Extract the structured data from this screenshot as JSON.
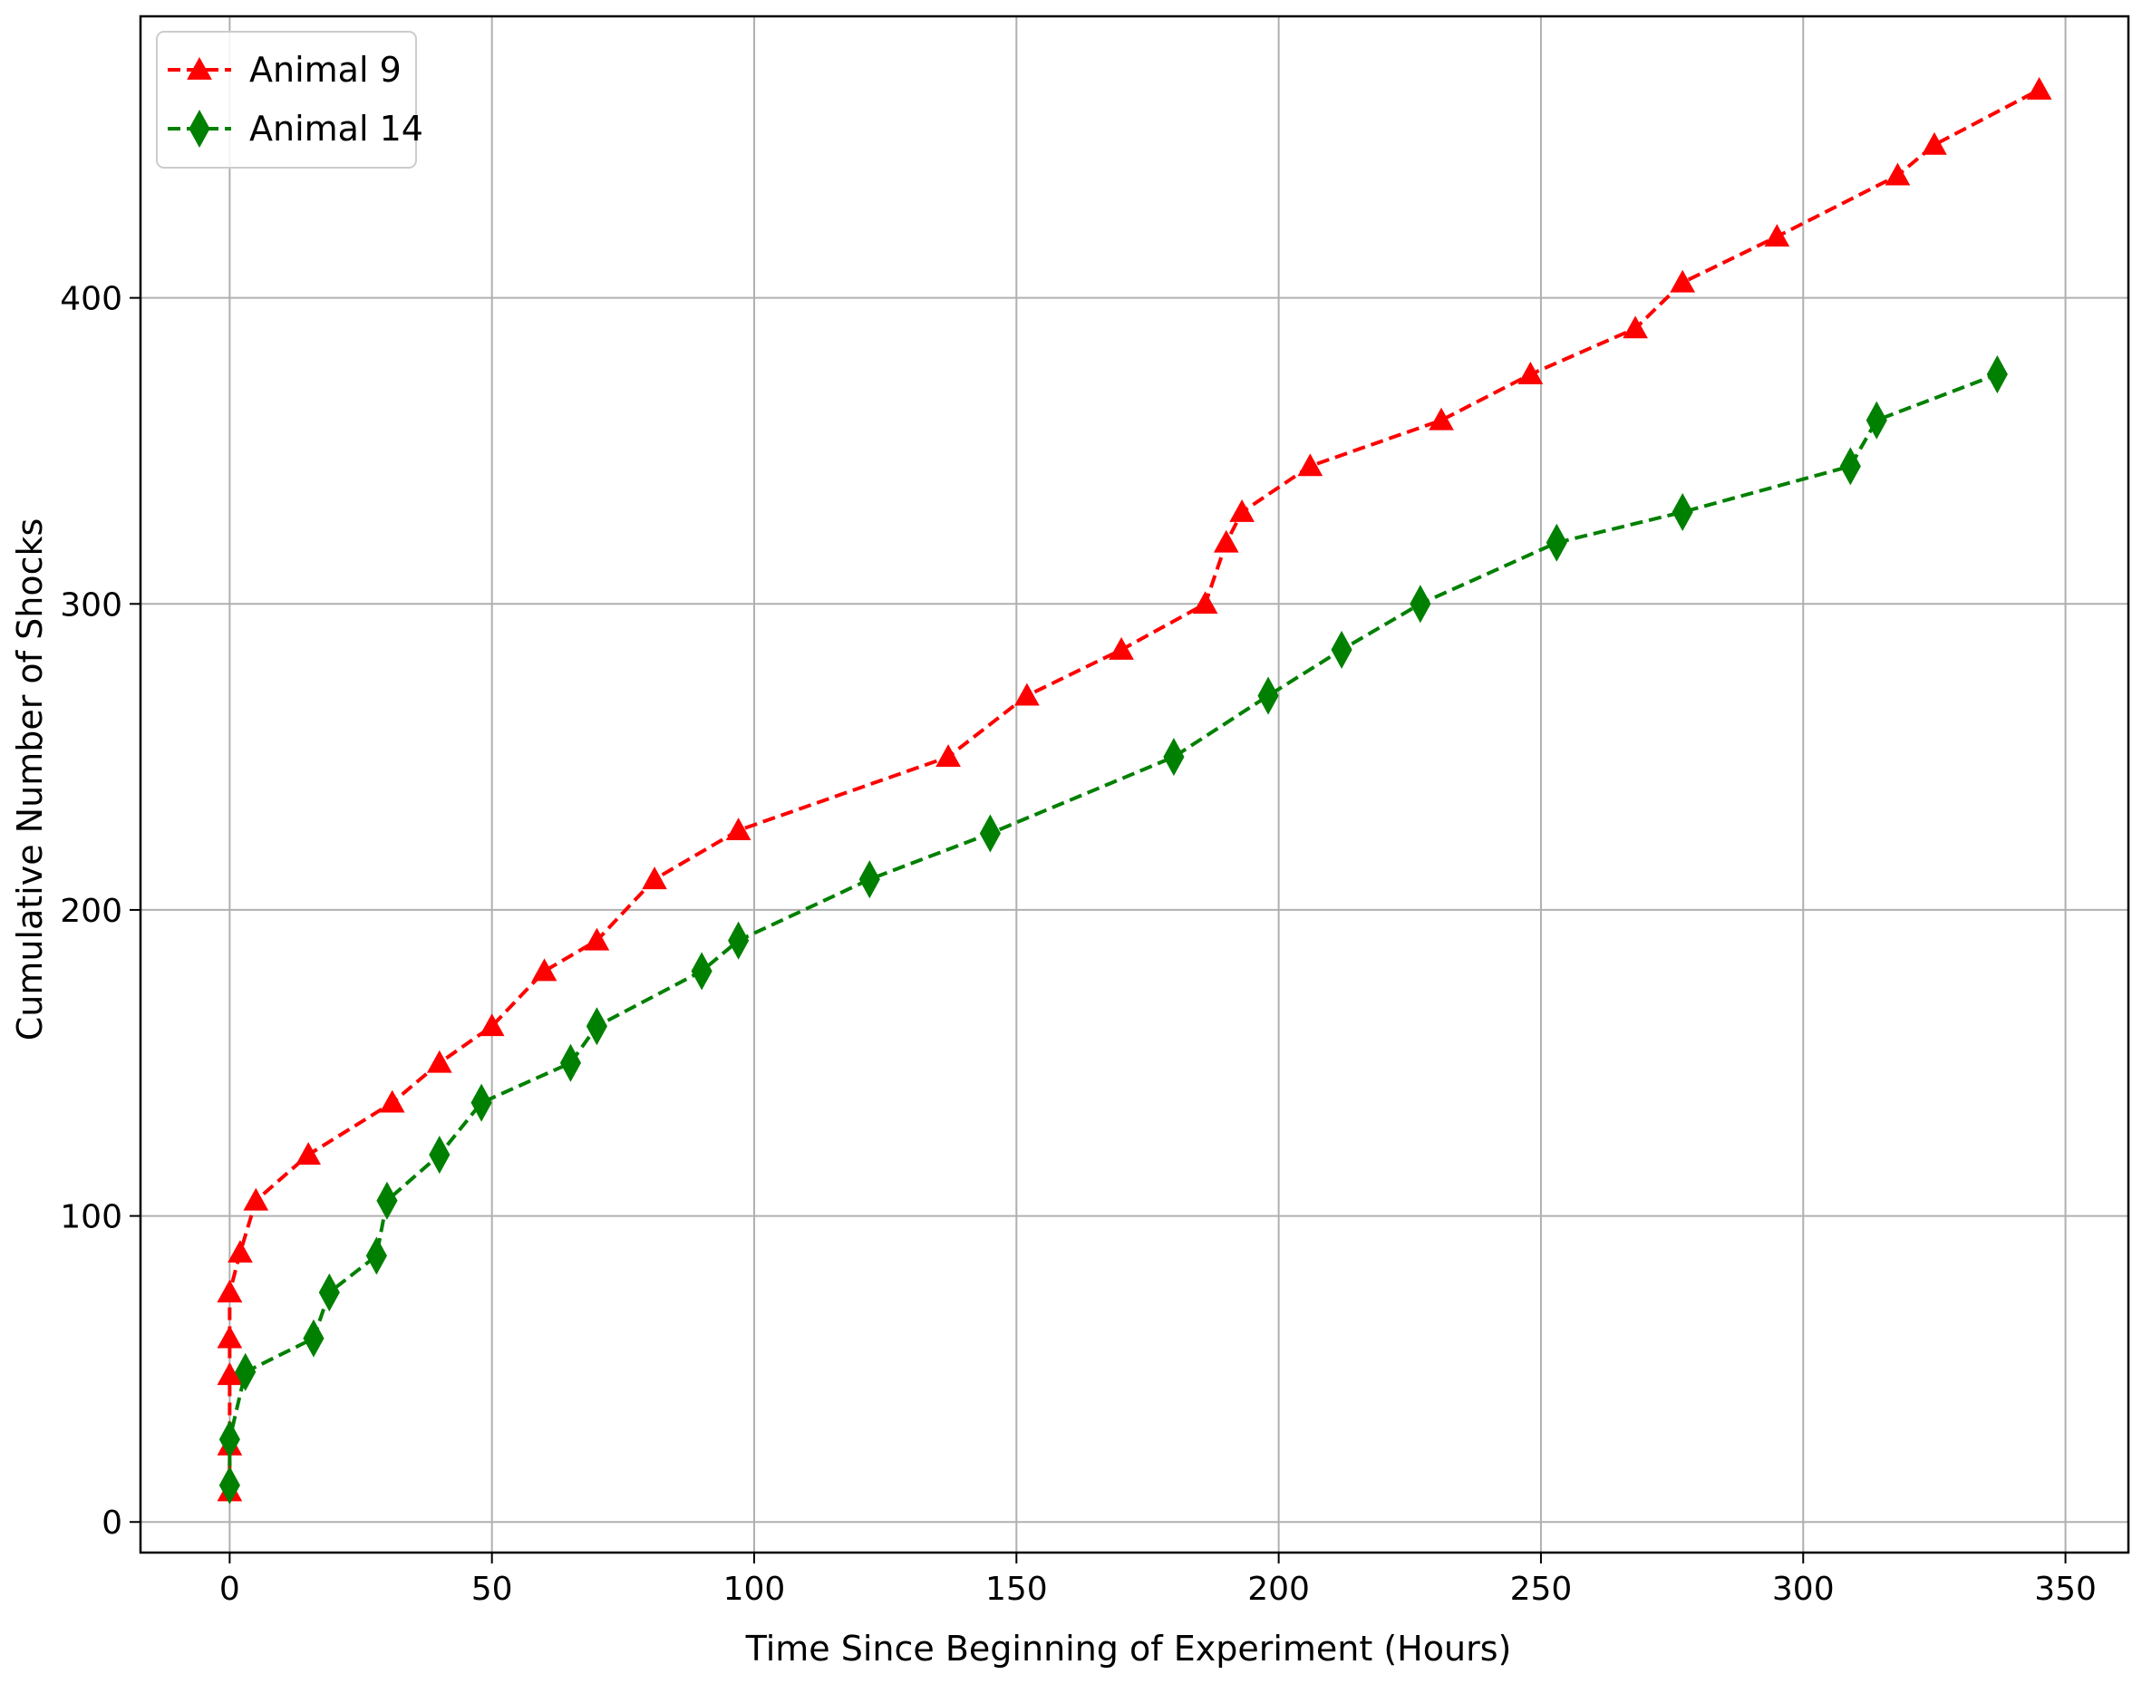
{
  "chart_data": {
    "type": "line",
    "title": "",
    "xlabel": "Time Since Beginning of Experiment (Hours)",
    "ylabel": "Cumulative Number of Shocks",
    "xlim": [
      -17,
      362
    ],
    "ylim": [
      -10,
      492
    ],
    "xticks": [
      0,
      50,
      100,
      150,
      200,
      250,
      300,
      350
    ],
    "yticks": [
      0,
      100,
      200,
      300,
      400
    ],
    "xtick_labels": [
      "0",
      "50",
      "100",
      "150",
      "200",
      "250",
      "300",
      "350"
    ],
    "ytick_labels": [
      "0",
      "100",
      "200",
      "300",
      "400"
    ],
    "grid": true,
    "legend_position": "upper-left",
    "series": [
      {
        "name": "Animal 9",
        "color": "#ff0000",
        "marker": "triangle",
        "linestyle": "dashed",
        "x": [
          0,
          0,
          0,
          0,
          0,
          0,
          2,
          5,
          15,
          31,
          40,
          50,
          60,
          70,
          81,
          97,
          137,
          152,
          170,
          186,
          190,
          193,
          206,
          231,
          248,
          268,
          277,
          295,
          318,
          325,
          345
        ],
        "y": [
          10,
          25,
          48,
          60,
          75,
          75,
          88,
          105,
          120,
          137,
          150,
          162,
          180,
          190,
          210,
          226,
          250,
          270,
          285,
          300,
          320,
          330,
          345,
          360,
          375,
          390,
          405,
          420,
          440,
          450,
          468
        ]
      },
      {
        "name": "Animal 14",
        "color": "#008000",
        "marker": "thin_diamond",
        "linestyle": "dashed",
        "x": [
          0,
          0,
          3,
          16,
          19,
          28,
          30,
          40,
          48,
          65,
          70,
          90,
          97,
          122,
          145,
          180,
          198,
          212,
          227,
          253,
          277,
          309,
          314,
          337
        ],
        "y": [
          12,
          27,
          49,
          60,
          75,
          87,
          105,
          120,
          137,
          150,
          162,
          180,
          190,
          210,
          225,
          250,
          270,
          285,
          300,
          320,
          330,
          345,
          360,
          375
        ]
      }
    ]
  }
}
